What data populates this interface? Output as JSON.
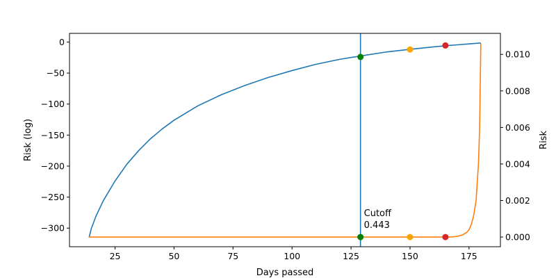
{
  "chart_data": {
    "type": "line",
    "xlabel": "Days passed",
    "ylabel_left": "Risk (log)",
    "ylabel_right": "Risk",
    "xlim": [
      5.7,
      188.3
    ],
    "ylim_left": [
      -330,
      14
    ],
    "ylim_right": [
      -0.00053,
      0.01115
    ],
    "x_ticks": [
      25,
      50,
      75,
      100,
      125,
      150,
      175
    ],
    "y_left_ticks": [
      0,
      -50,
      -100,
      -150,
      -200,
      -250,
      -300
    ],
    "y_right_ticks": [
      "0.000",
      "0.002",
      "0.004",
      "0.006",
      "0.008",
      "0.010"
    ],
    "grid": false,
    "series": [
      {
        "axis": "left",
        "color": "#1f77b4",
        "x": [
          14,
          15,
          17,
          20,
          25,
          30,
          35,
          40,
          45,
          50,
          60,
          70,
          80,
          90,
          100,
          110,
          120,
          129,
          140,
          150,
          160,
          165,
          170,
          175,
          180
        ],
        "y": [
          -315,
          -300,
          -280,
          -256,
          -224,
          -197,
          -175,
          -156,
          -140,
          -126,
          -103,
          -85,
          -70,
          -57,
          -46,
          -36,
          -28,
          -22.5,
          -16,
          -11.7,
          -7.8,
          -6,
          -4.5,
          -3,
          -1.5
        ]
      },
      {
        "axis": "right",
        "color": "#ff7f0e",
        "x": [
          14,
          50,
          100,
          150,
          165,
          168,
          170,
          172,
          174,
          175,
          176,
          177,
          178,
          179,
          179.5,
          180
        ],
        "y": [
          0,
          0,
          0,
          0,
          0,
          1e-05,
          4e-05,
          0.0001,
          0.00025,
          0.0004,
          0.0007,
          0.0012,
          0.002,
          0.004,
          0.006,
          0.0106
        ]
      }
    ],
    "points": [
      {
        "axis": "left",
        "x": 129,
        "y": -24,
        "color": "#008000"
      },
      {
        "axis": "left",
        "x": 150,
        "y": -12,
        "color": "#ffa500"
      },
      {
        "axis": "left",
        "x": 165,
        "y": -5.5,
        "color": "#d62728"
      },
      {
        "axis": "right",
        "x": 129,
        "y": 0,
        "color": "#008000"
      },
      {
        "axis": "right",
        "x": 150,
        "y": 0,
        "color": "#ffa500"
      },
      {
        "axis": "right",
        "x": 165,
        "y": 0,
        "color": "#d62728"
      }
    ],
    "cutoff": {
      "x": 129,
      "label": "Cutoff",
      "value": "0.443",
      "color": "#1f77b4"
    }
  }
}
